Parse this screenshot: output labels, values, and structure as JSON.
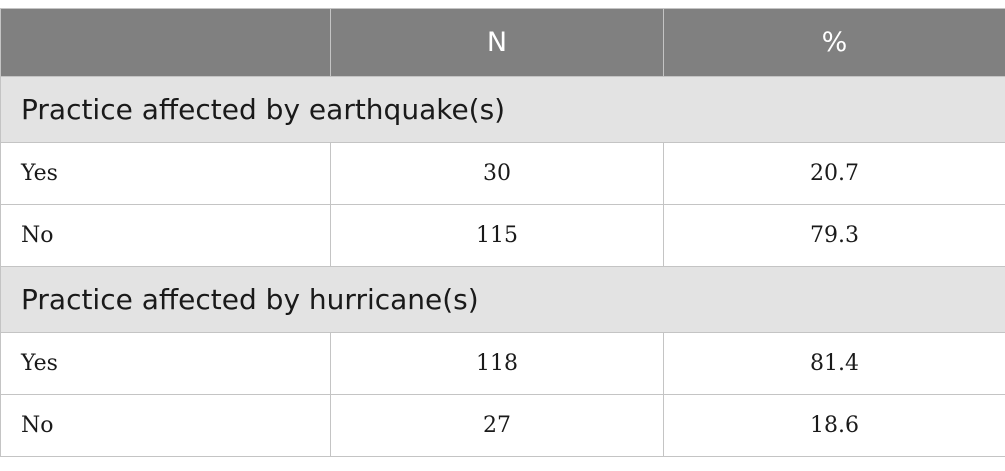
{
  "table": {
    "header": [
      "N",
      "%"
    ],
    "sections": [
      {
        "title": "Practice affected by earthquake(s)",
        "rows": [
          [
            "Yes",
            30,
            20.7
          ],
          [
            "No",
            115,
            79.3
          ]
        ]
      },
      {
        "title": "Practice affected by hurricane(s)",
        "rows": [
          [
            "Yes",
            118,
            81.4
          ],
          [
            "No",
            27,
            18.6
          ]
        ]
      }
    ]
  }
}
